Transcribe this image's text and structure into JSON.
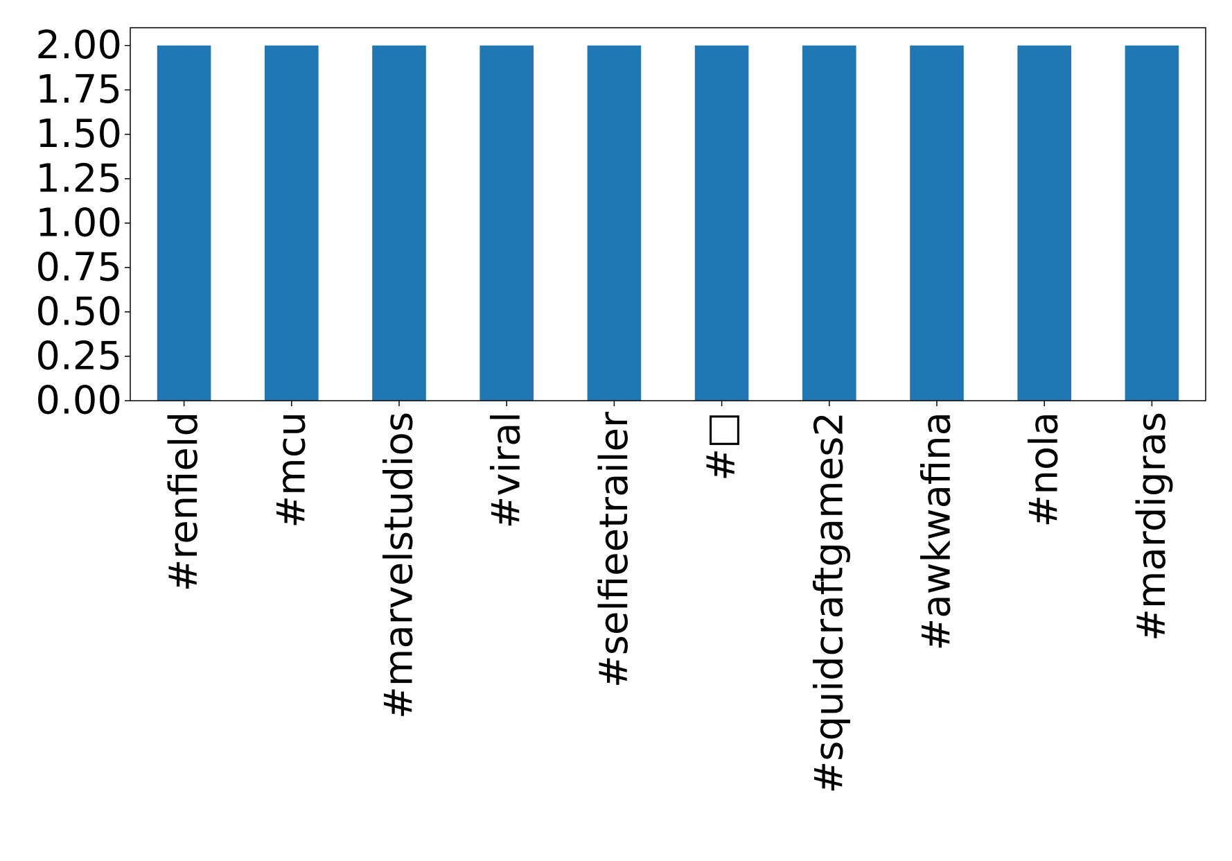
{
  "chart_data": {
    "type": "bar",
    "categories": [
      "#renfield",
      "#mcu",
      "#marvelstudios",
      "#viral",
      "#selfieetrailer",
      "#□",
      "#squidcraftgames2",
      "#awkwafina",
      "#nola",
      "#mardigras"
    ],
    "values": [
      2,
      2,
      2,
      2,
      2,
      2,
      2,
      2,
      2,
      2
    ],
    "color": "#1f77b4",
    "ylim": [
      0,
      2.1
    ],
    "yticks": [
      {
        "value": 0,
        "label": "0.00"
      },
      {
        "value": 0.25,
        "label": "0.25"
      },
      {
        "value": 0.5,
        "label": "0.50"
      },
      {
        "value": 0.75,
        "label": "0.75"
      },
      {
        "value": 1,
        "label": "1.00"
      },
      {
        "value": 1.25,
        "label": "1.25"
      },
      {
        "value": 1.5,
        "label": "1.50"
      },
      {
        "value": 1.75,
        "label": "1.75"
      },
      {
        "value": 2,
        "label": "2.00"
      }
    ],
    "grid": false
  }
}
